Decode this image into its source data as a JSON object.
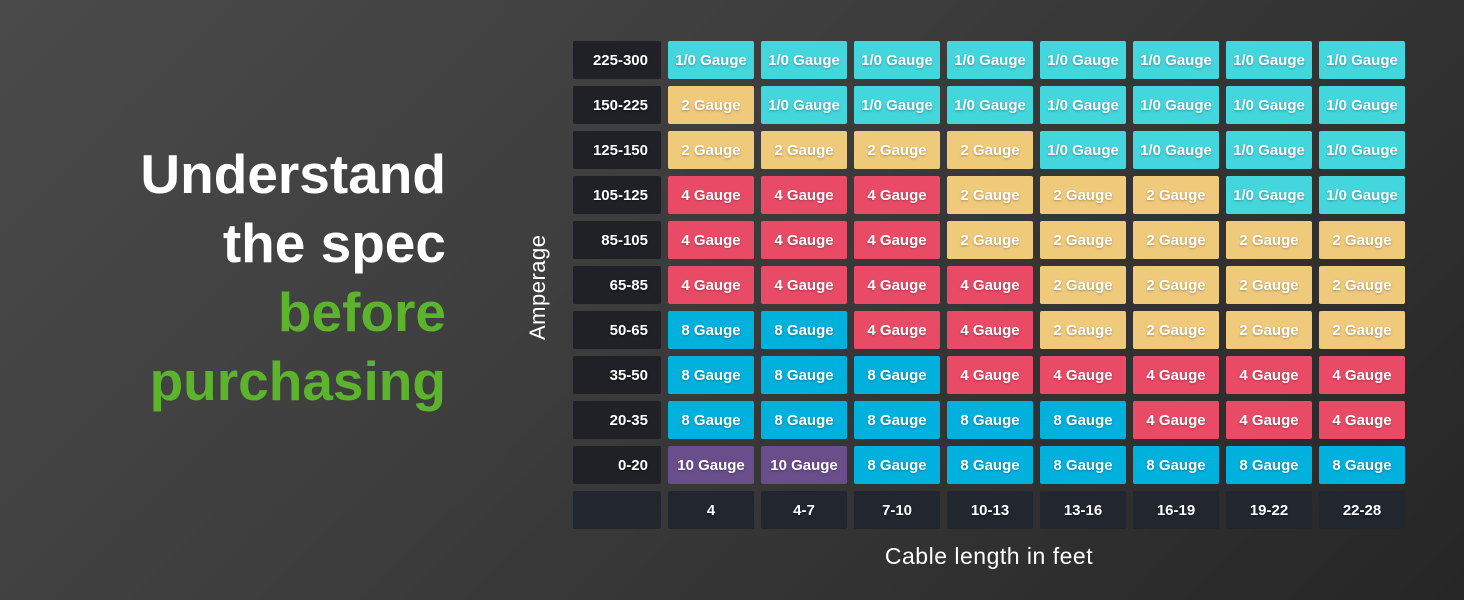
{
  "headline": {
    "lines": [
      {
        "text": "Understand",
        "color": "#ffffff"
      },
      {
        "text": "the spec",
        "color": "#ffffff"
      },
      {
        "text": "before",
        "color": "#5cb42c"
      },
      {
        "text": "purchasing",
        "color": "#5cb42c"
      }
    ]
  },
  "axes": {
    "y_label": "Amperage",
    "x_label": "Cable length in feet"
  },
  "colors": {
    "accent_green": "#5cb42c",
    "row_label_bg": "#1f2127",
    "footer_bg": "#22262f"
  },
  "chart_data": {
    "type": "heatmap",
    "title": "",
    "xlabel": "Cable length in feet",
    "ylabel": "Amperage",
    "legend_position": "none",
    "grid": false,
    "x_categories": [
      "4",
      "4-7",
      "7-10",
      "10-13",
      "13-16",
      "16-19",
      "19-22",
      "22-28"
    ],
    "y_categories": [
      "225-300",
      "150-225",
      "125-150",
      "105-125",
      "85-105",
      "65-85",
      "50-65",
      "35-50",
      "20-35",
      "0-20"
    ],
    "gauges": {
      "1/0": {
        "label": "1/0 Gauge",
        "color": "#44d6dd"
      },
      "2": {
        "label": "2 Gauge",
        "color": "#f0ca7b"
      },
      "4": {
        "label": "4 Gauge",
        "color": "#e94b66"
      },
      "8": {
        "label": "8 Gauge",
        "color": "#00b1dd"
      },
      "10": {
        "label": "10 Gauge",
        "color": "#6a4e8c"
      }
    },
    "cells": [
      [
        "1/0",
        "1/0",
        "1/0",
        "1/0",
        "1/0",
        "1/0",
        "1/0",
        "1/0"
      ],
      [
        "2",
        "1/0",
        "1/0",
        "1/0",
        "1/0",
        "1/0",
        "1/0",
        "1/0"
      ],
      [
        "2",
        "2",
        "2",
        "2",
        "1/0",
        "1/0",
        "1/0",
        "1/0"
      ],
      [
        "4",
        "4",
        "4",
        "2",
        "2",
        "2",
        "1/0",
        "1/0"
      ],
      [
        "4",
        "4",
        "4",
        "2",
        "2",
        "2",
        "2",
        "2"
      ],
      [
        "4",
        "4",
        "4",
        "4",
        "2",
        "2",
        "2",
        "2"
      ],
      [
        "8",
        "8",
        "4",
        "4",
        "2",
        "2",
        "2",
        "2"
      ],
      [
        "8",
        "8",
        "8",
        "4",
        "4",
        "4",
        "4",
        "4"
      ],
      [
        "8",
        "8",
        "8",
        "8",
        "8",
        "4",
        "4",
        "4"
      ],
      [
        "10",
        "10",
        "8",
        "8",
        "8",
        "8",
        "8",
        "8"
      ]
    ]
  }
}
